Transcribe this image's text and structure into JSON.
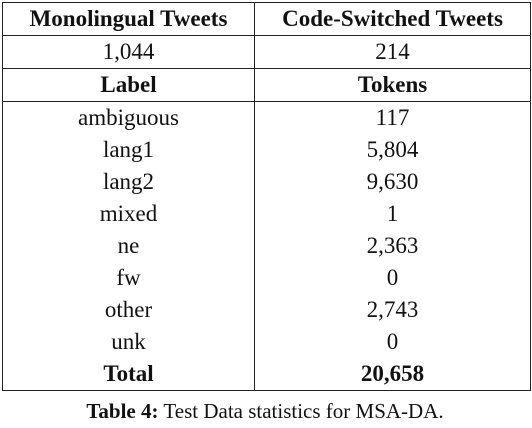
{
  "table": {
    "header": {
      "col1": "Monolingual Tweets",
      "col2": "Code-Switched Tweets"
    },
    "counts": {
      "col1": "1,044",
      "col2": "214"
    },
    "subheader": {
      "col1": "Label",
      "col2": "Tokens"
    },
    "rows": [
      {
        "label": "ambiguous",
        "tokens": "117"
      },
      {
        "label": "lang1",
        "tokens": "5,804"
      },
      {
        "label": "lang2",
        "tokens": "9,630"
      },
      {
        "label": "mixed",
        "tokens": "1"
      },
      {
        "label": "ne",
        "tokens": "2,363"
      },
      {
        "label": "fw",
        "tokens": "0"
      },
      {
        "label": "other",
        "tokens": "2,743"
      },
      {
        "label": "unk",
        "tokens": "0"
      }
    ],
    "total": {
      "label": "Total",
      "tokens": "20,658"
    }
  },
  "caption": {
    "label": "Table 4:",
    "text": "Test Data statistics for MSA-DA."
  }
}
